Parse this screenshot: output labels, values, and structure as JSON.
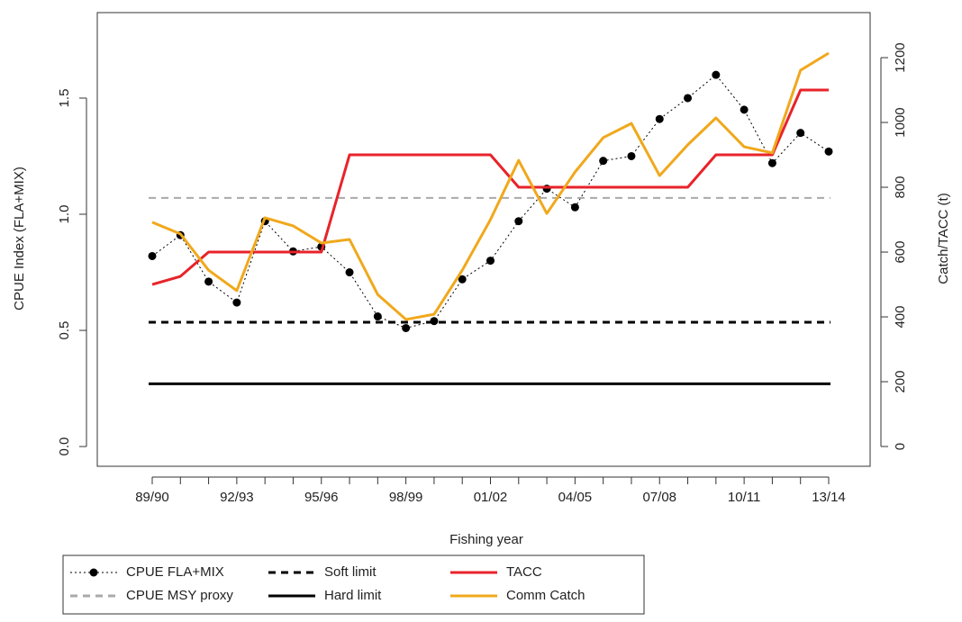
{
  "chart_data": {
    "type": "line",
    "x_label": "Fishing year",
    "y_label": "CPUE Index (FLA+MIX)",
    "y2_label": "Catch/TACC (t)",
    "categories": [
      "89/90",
      null,
      null,
      "92/93",
      null,
      null,
      "95/96",
      null,
      null,
      "98/99",
      null,
      null,
      "01/02",
      null,
      null,
      "04/05",
      null,
      null,
      "07/08",
      null,
      null,
      "10/11",
      null,
      null,
      "13/14"
    ],
    "ylim": [
      -0.085,
      1.868
    ],
    "yticks": [
      {
        "value": 0,
        "label": "0.0"
      },
      0.5,
      {
        "value": 1,
        "label": "1.0"
      },
      1.5
    ],
    "y2lim": [
      -61,
      1339
    ],
    "y2ticks": [
      0,
      200,
      400,
      600,
      800,
      1000,
      1200
    ],
    "series": [
      {
        "name": "CPUE FLA+MIX",
        "color": "#000000",
        "style": "dotted",
        "marker": "circle",
        "values": [
          0.82,
          0.91,
          0.71,
          0.62,
          0.97,
          0.84,
          0.86,
          0.75,
          0.56,
          0.51,
          0.54,
          0.72,
          0.8,
          0.97,
          1.11,
          1.03,
          1.23,
          1.25,
          1.41,
          1.5,
          1.6,
          1.45,
          1.22,
          1.35,
          1.27
        ]
      },
      {
        "name": "CPUE MSY proxy",
        "color": "#aaaaaa",
        "style": "dashed",
        "value": 1.07
      },
      {
        "name": "Soft limit",
        "color": "#000000",
        "style": "dashed",
        "value": 0.535
      },
      {
        "name": "Hard limit",
        "color": "#000000",
        "style": "solid",
        "value": 0.27
      },
      {
        "name": "TACC",
        "color": "#e8232a",
        "style": "solid",
        "axis": "y2",
        "values": [
          500,
          525,
          600,
          600,
          600,
          600,
          600,
          900,
          900,
          900,
          900,
          900,
          900,
          800,
          800,
          800,
          800,
          800,
          800,
          800,
          900,
          900,
          900,
          1100,
          1100
        ]
      },
      {
        "name": "Comm Catch",
        "color": "#f0a81c",
        "style": "solid",
        "axis": "y2",
        "values": [
          692,
          656,
          544,
          481,
          706,
          681,
          628,
          639,
          469,
          392,
          408,
          544,
          700,
          883,
          719,
          847,
          953,
          997,
          836,
          931,
          1014,
          925,
          906,
          1161,
          1214
        ]
      }
    ]
  }
}
